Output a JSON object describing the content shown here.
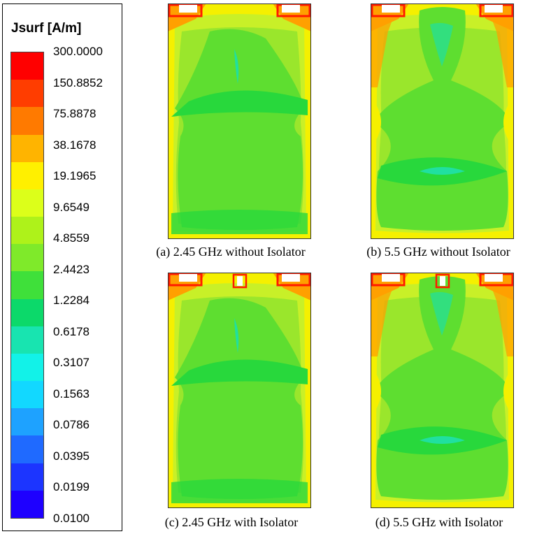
{
  "legend": {
    "title": "Jsurf [A/m]",
    "ticks": [
      "300.0000",
      "150.8852",
      "75.8878",
      "38.1678",
      "19.1965",
      "9.6549",
      "4.8559",
      "2.4423",
      "1.2284",
      "0.6178",
      "0.3107",
      "0.1563",
      "0.0786",
      "0.0395",
      "0.0199",
      "0.0100"
    ],
    "colors": [
      "#ff0000",
      "#ff3d00",
      "#ff7a00",
      "#ffb400",
      "#fff000",
      "#dcff1a",
      "#aef21a",
      "#7fea2a",
      "#3fe03a",
      "#0cd96a",
      "#18e4b0",
      "#12f2e8",
      "#12d8ff",
      "#1ea2ff",
      "#1f6aff",
      "#1c35ff",
      "#1e00ff"
    ]
  },
  "panels": [
    {
      "id": "a",
      "caption": "(a) 2.45 GHz without Isolator",
      "variant": "2.45",
      "isolator": false
    },
    {
      "id": "b",
      "caption": "(b) 5.5 GHz without Isolator",
      "variant": "5.5",
      "isolator": false
    },
    {
      "id": "c",
      "caption": "(c) 2.45 GHz with Isolator",
      "variant": "2.45",
      "isolator": true
    },
    {
      "id": "d",
      "caption": "(d) 5.5 GHz with Isolator",
      "variant": "5.5",
      "isolator": true
    }
  ],
  "colors": {
    "yellow": "#f5f000",
    "yellowgreen": "#c8f028",
    "lightgreen": "#9ae62c",
    "green": "#5ede30",
    "brightgreen": "#28d83c",
    "teal": "#20e0a0",
    "orange": "#ffa000",
    "red": "#ff1a00"
  }
}
